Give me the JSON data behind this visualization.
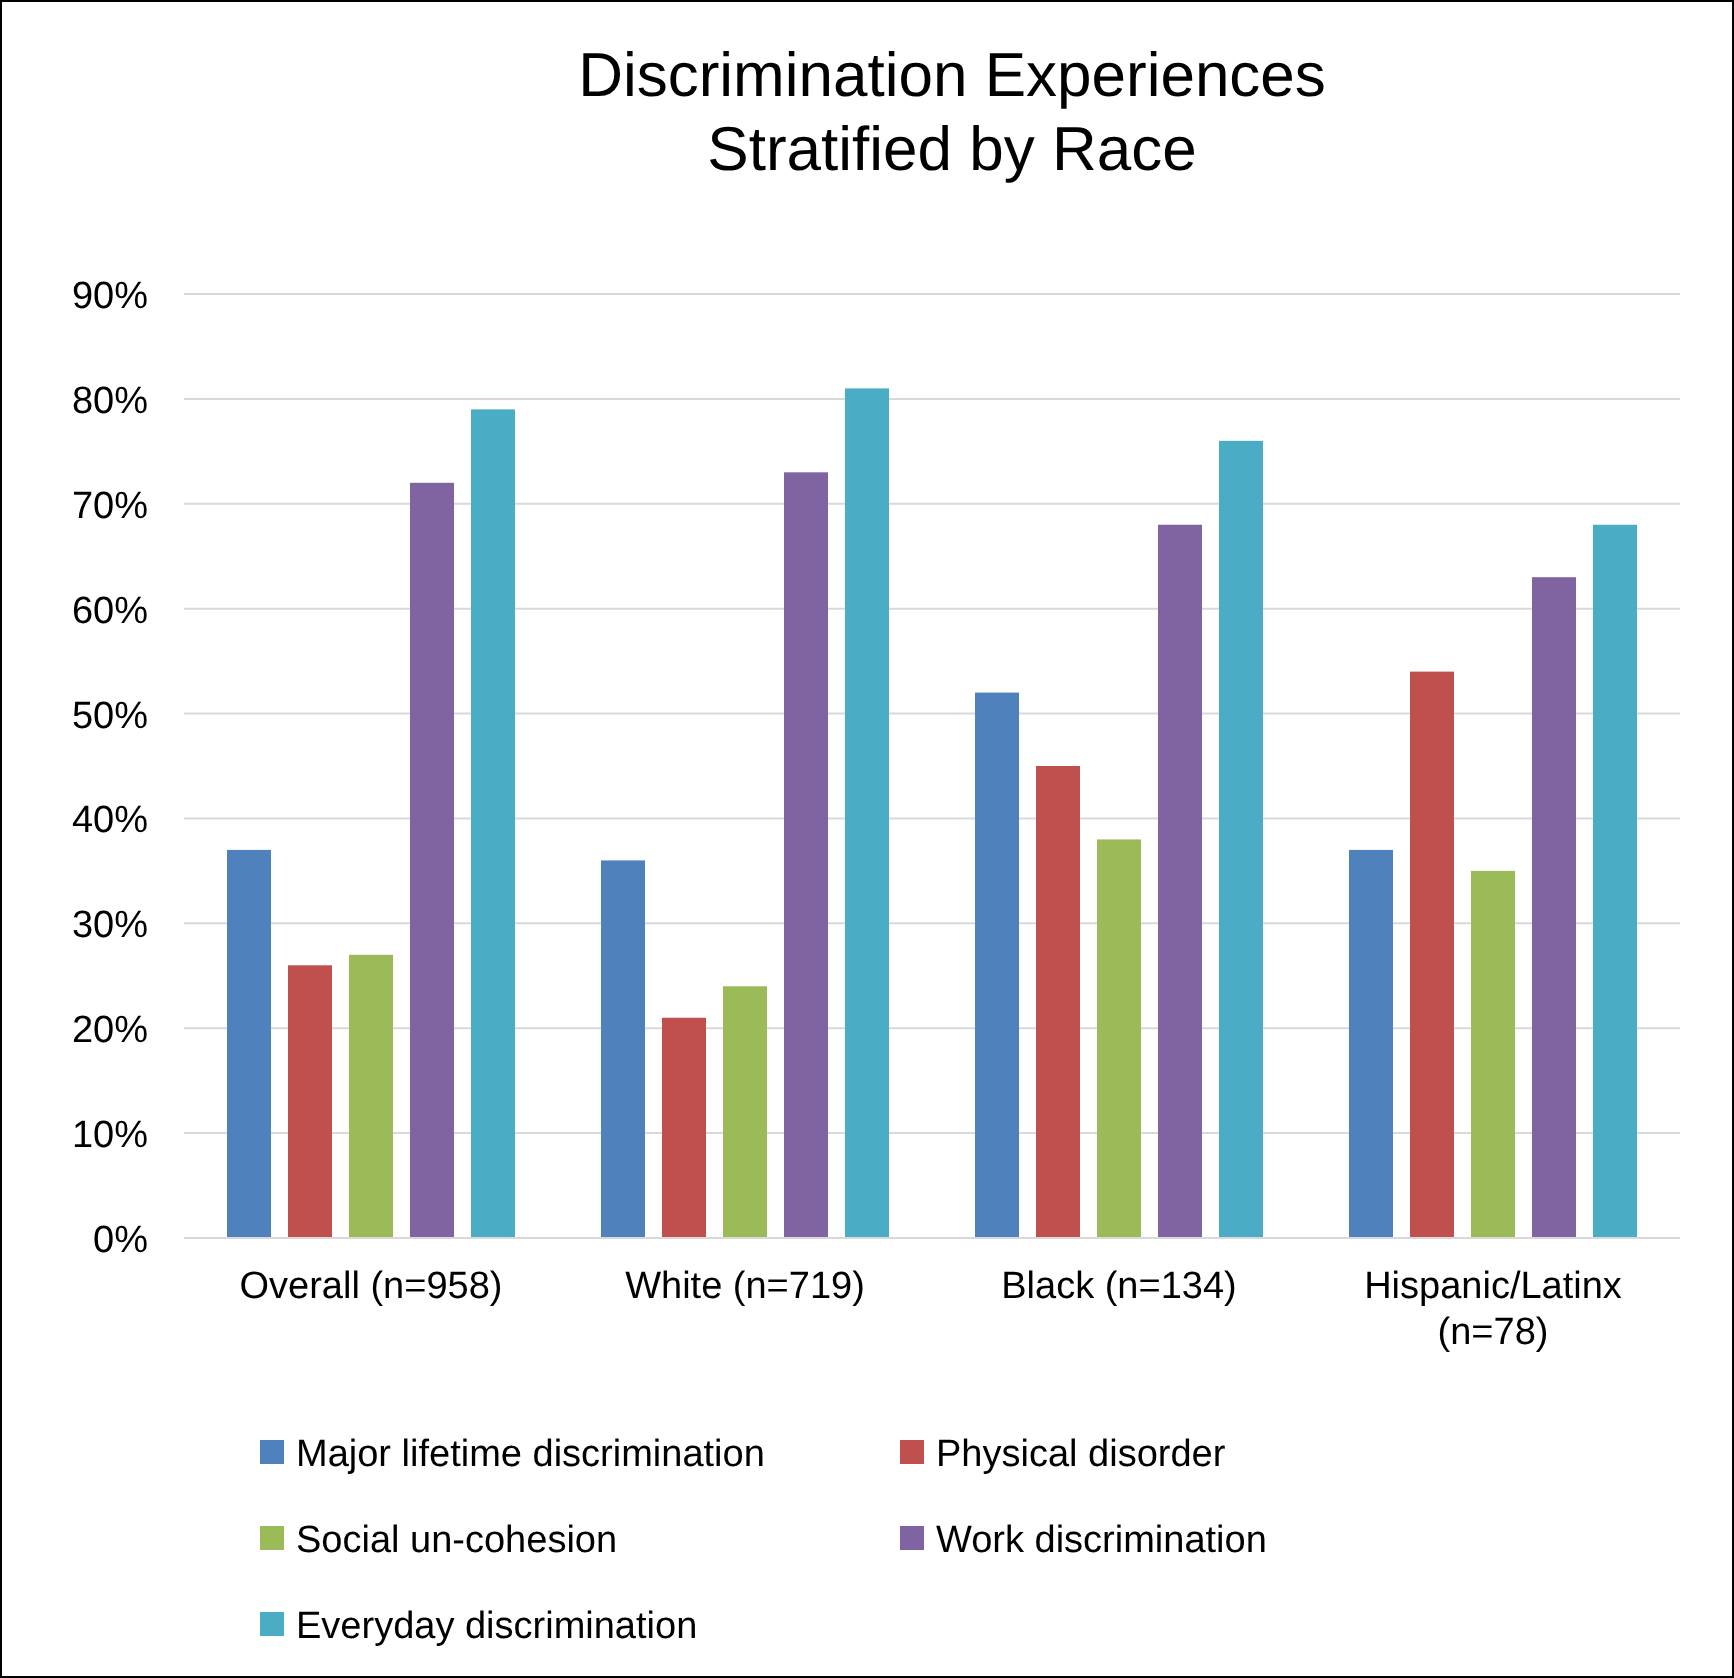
{
  "chart_data": {
    "type": "bar",
    "title": "Discrimination Experiences Stratified by Race",
    "categories": [
      "Overall (n=958)",
      "White (n=719)",
      "Black (n=134)",
      "Hispanic/Latinx (n=78)"
    ],
    "series": [
      {
        "name": "Major lifetime discrimination",
        "color": "#4f81bd",
        "values": [
          37,
          36,
          52,
          37
        ]
      },
      {
        "name": "Physical disorder",
        "color": "#c0504d",
        "values": [
          26,
          21,
          45,
          54
        ]
      },
      {
        "name": "Social un-cohesion",
        "color": "#9bbb59",
        "values": [
          27,
          24,
          38,
          35
        ]
      },
      {
        "name": "Work discrimination",
        "color": "#8064a2",
        "values": [
          72,
          73,
          68,
          63
        ]
      },
      {
        "name": "Everyday discrimination",
        "color": "#4bacc6",
        "values": [
          79,
          81,
          76,
          68
        ]
      }
    ],
    "ylim": [
      0,
      90
    ],
    "yticks": [
      {
        "value": 0,
        "label": "0%"
      },
      {
        "value": 10,
        "label": "10%"
      },
      {
        "value": 20,
        "label": "20%"
      },
      {
        "value": 30,
        "label": "30%"
      },
      {
        "value": 40,
        "label": "40%"
      },
      {
        "value": 50,
        "label": "50%"
      },
      {
        "value": 60,
        "label": "60%"
      },
      {
        "value": 70,
        "label": "70%"
      },
      {
        "value": 80,
        "label": "80%"
      },
      {
        "value": 90,
        "label": "90%"
      }
    ],
    "grid": "y",
    "legend": "bottom"
  }
}
